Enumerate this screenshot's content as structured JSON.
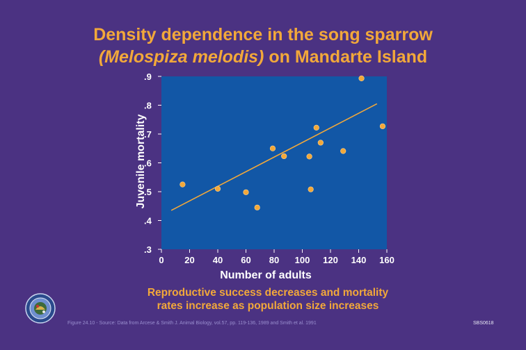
{
  "title": {
    "line1": "Density dependence in the song sparrow",
    "line2_italic": "(Melospiza melodis)",
    "line2_rest": " on Mandarte Island"
  },
  "caption": {
    "line1": "Reproductive success decreases and mortality",
    "line2": "rates increase as population size increases"
  },
  "footnote": "Figure 24.10 - Source: Data from Arcese & Smith J. Animal Biology, vol.57, pp. 119-136, 1989 and Smith et al. 1991",
  "slide_id": "SBS0618",
  "logo_icon": "seal-icon",
  "colors": {
    "background": "#4b3282",
    "plot_area": "#1257a6",
    "accent": "#f2a83a",
    "text": "#ffffff"
  },
  "chart_data": {
    "type": "scatter",
    "xlabel": "Number of adults",
    "ylabel": "Juvenile mortality",
    "xlim": [
      0,
      160
    ],
    "ylim": [
      0.3,
      0.9
    ],
    "xticks": [
      0,
      20,
      40,
      60,
      80,
      100,
      120,
      140,
      160
    ],
    "xtick_labels": [
      "0",
      "20",
      "40",
      "60",
      "80",
      "100",
      "120",
      "140",
      "160"
    ],
    "yticks": [
      0.3,
      0.4,
      0.5,
      0.6,
      0.7,
      0.8,
      0.9
    ],
    "ytick_labels": [
      ".3",
      ".4",
      ".5",
      ".6",
      ".7",
      ".8",
      ".9"
    ],
    "points": [
      {
        "x": 15,
        "y": 0.525
      },
      {
        "x": 40,
        "y": 0.51
      },
      {
        "x": 60,
        "y": 0.498
      },
      {
        "x": 68,
        "y": 0.445
      },
      {
        "x": 79,
        "y": 0.65
      },
      {
        "x": 87,
        "y": 0.623
      },
      {
        "x": 105,
        "y": 0.622
      },
      {
        "x": 106,
        "y": 0.508
      },
      {
        "x": 110,
        "y": 0.722
      },
      {
        "x": 113,
        "y": 0.67
      },
      {
        "x": 129,
        "y": 0.641
      },
      {
        "x": 142,
        "y": 0.893
      },
      {
        "x": 157,
        "y": 0.727
      }
    ],
    "trendline": {
      "x1": 7,
      "y1": 0.435,
      "x2": 153,
      "y2": 0.805
    }
  }
}
